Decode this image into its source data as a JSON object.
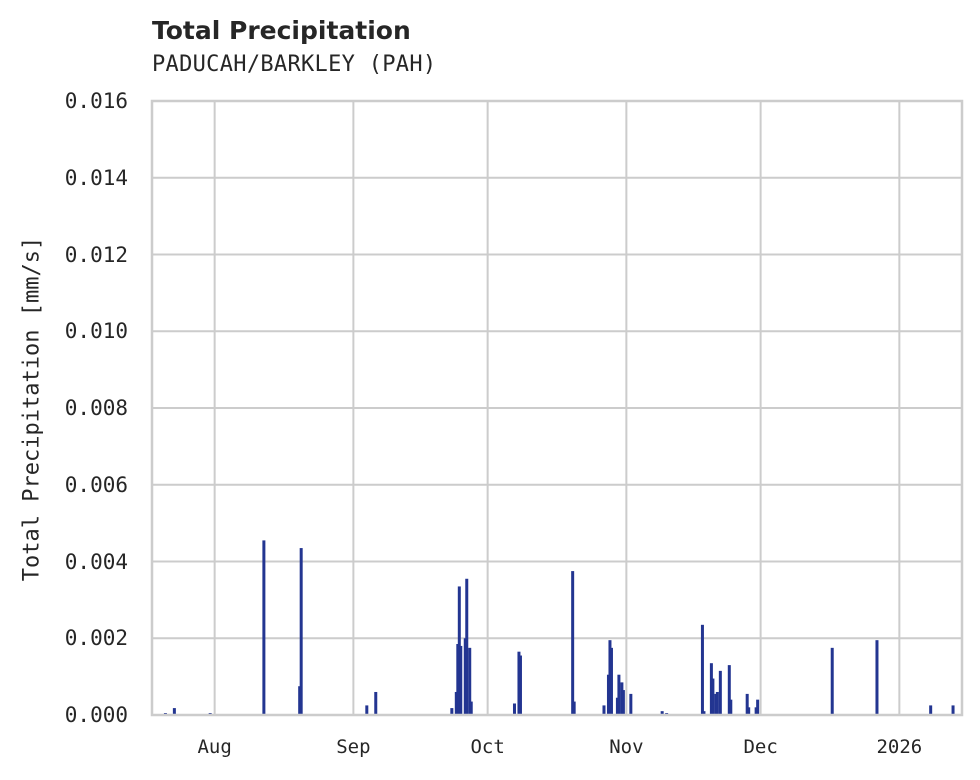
{
  "chart": {
    "title": "Total Precipitation",
    "subtitle": "PADUCAH/BARKLEY (PAH)",
    "ylabel": "Total Precipitation [mm/s]",
    "yticks": [
      "0.000",
      "0.002",
      "0.004",
      "0.006",
      "0.008",
      "0.010",
      "0.012",
      "0.014",
      "0.016"
    ],
    "xticks": [
      "Aug",
      "Sep",
      "Oct",
      "Nov",
      "Dec",
      "2026"
    ],
    "bar_color": "#233591",
    "grid_color": "#cccccc"
  },
  "chart_data": {
    "type": "bar",
    "title": "Total Precipitation",
    "subtitle": "PADUCAH/BARKLEY (PAH)",
    "xlabel": "",
    "ylabel": "Total Precipitation [mm/s]",
    "ylim": [
      0,
      0.016
    ],
    "xlim": [
      "2025-07-18",
      "2026-01-15"
    ],
    "grid": true,
    "legend": null,
    "x_tick_labels": [
      "Aug",
      "Sep",
      "Oct",
      "Nov",
      "Dec",
      "2026"
    ],
    "y_tick_labels": [
      "0.000",
      "0.002",
      "0.004",
      "0.006",
      "0.008",
      "0.010",
      "0.012",
      "0.014",
      "0.016"
    ],
    "series": [
      {
        "name": "Total Precipitation",
        "color": "#233591",
        "points": [
          {
            "x": "2025-07-21",
            "y": 5e-05
          },
          {
            "x": "2025-07-23",
            "y": 0.00018
          },
          {
            "x": "2025-07-31",
            "y": 5e-05
          },
          {
            "x": "2025-08-12",
            "y": 0.00455
          },
          {
            "x": "2025-08-20",
            "y": 0.00075
          },
          {
            "x": "2025-08-20",
            "y": 0.00435
          },
          {
            "x": "2025-09-04",
            "y": 0.00025
          },
          {
            "x": "2025-09-06",
            "y": 0.0006
          },
          {
            "x": "2025-09-23",
            "y": 0.00018
          },
          {
            "x": "2025-09-24",
            "y": 0.0006
          },
          {
            "x": "2025-09-24",
            "y": 0.00185
          },
          {
            "x": "2025-09-24",
            "y": 0.00335
          },
          {
            "x": "2025-09-25",
            "y": 0.0018
          },
          {
            "x": "2025-09-26",
            "y": 0.002
          },
          {
            "x": "2025-09-26",
            "y": 0.00355
          },
          {
            "x": "2025-09-27",
            "y": 0.00175
          },
          {
            "x": "2025-09-27",
            "y": 0.00035
          },
          {
            "x": "2025-10-07",
            "y": 0.0003
          },
          {
            "x": "2025-10-08",
            "y": 0.00165
          },
          {
            "x": "2025-10-08",
            "y": 0.00155
          },
          {
            "x": "2025-10-20",
            "y": 0.00375
          },
          {
            "x": "2025-10-20",
            "y": 0.00035
          },
          {
            "x": "2025-10-27",
            "y": 0.00025
          },
          {
            "x": "2025-10-28",
            "y": 0.00105
          },
          {
            "x": "2025-10-28",
            "y": 0.00195
          },
          {
            "x": "2025-10-28",
            "y": 0.00175
          },
          {
            "x": "2025-10-30",
            "y": 0.00045
          },
          {
            "x": "2025-10-30",
            "y": 0.00105
          },
          {
            "x": "2025-10-31",
            "y": 0.00085
          },
          {
            "x": "2025-10-31",
            "y": 0.00065
          },
          {
            "x": "2025-11-02",
            "y": 0.00055
          },
          {
            "x": "2025-11-09",
            "y": 0.0001
          },
          {
            "x": "2025-11-10",
            "y": 5e-05
          },
          {
            "x": "2025-11-18",
            "y": 0.00235
          },
          {
            "x": "2025-11-18",
            "y": 0.0001
          },
          {
            "x": "2025-11-20",
            "y": 0.00135
          },
          {
            "x": "2025-11-20",
            "y": 0.00095
          },
          {
            "x": "2025-11-21",
            "y": 0.00055
          },
          {
            "x": "2025-11-21",
            "y": 0.0006
          },
          {
            "x": "2025-11-22",
            "y": 0.00115
          },
          {
            "x": "2025-11-24",
            "y": 0.0013
          },
          {
            "x": "2025-11-24",
            "y": 0.0004
          },
          {
            "x": "2025-11-28",
            "y": 0.00055
          },
          {
            "x": "2025-11-28",
            "y": 0.0002
          },
          {
            "x": "2025-11-30",
            "y": 0.0002
          },
          {
            "x": "2025-11-30",
            "y": 0.0004
          },
          {
            "x": "2025-12-17",
            "y": 0.00175
          },
          {
            "x": "2025-12-27",
            "y": 0.00195
          },
          {
            "x": "2026-01-08",
            "y": 0.00025
          },
          {
            "x": "2026-01-13",
            "y": 0.00025
          }
        ]
      }
    ]
  }
}
